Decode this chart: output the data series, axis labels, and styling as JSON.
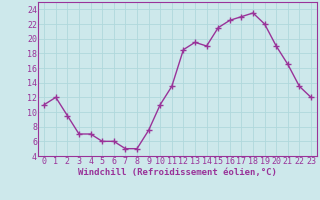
{
  "x": [
    0,
    1,
    2,
    3,
    4,
    5,
    6,
    7,
    8,
    9,
    10,
    11,
    12,
    13,
    14,
    15,
    16,
    17,
    18,
    19,
    20,
    21,
    22,
    23
  ],
  "y": [
    11,
    12,
    9.5,
    7,
    7,
    6,
    6,
    5,
    5,
    7.5,
    11,
    13.5,
    18.5,
    19.5,
    19,
    21.5,
    22.5,
    23,
    23.5,
    22,
    19,
    16.5,
    13.5,
    12
  ],
  "line_color": "#993399",
  "marker": "+",
  "marker_size": 4,
  "bg_color": "#cde8eb",
  "grid_color": "#b0d8dc",
  "xlabel": "Windchill (Refroidissement éolien,°C)",
  "xlabel_color": "#993399",
  "tick_color": "#993399",
  "spine_color": "#993399",
  "ylim": [
    4,
    25
  ],
  "xlim": [
    -0.5,
    23.5
  ],
  "yticks": [
    4,
    6,
    8,
    10,
    12,
    14,
    16,
    18,
    20,
    22,
    24
  ],
  "xticks": [
    0,
    1,
    2,
    3,
    4,
    5,
    6,
    7,
    8,
    9,
    10,
    11,
    12,
    13,
    14,
    15,
    16,
    17,
    18,
    19,
    20,
    21,
    22,
    23
  ],
  "xlabel_fontsize": 6.5,
  "tick_fontsize": 6,
  "linewidth": 1.0,
  "marker_linewidth": 1.0
}
